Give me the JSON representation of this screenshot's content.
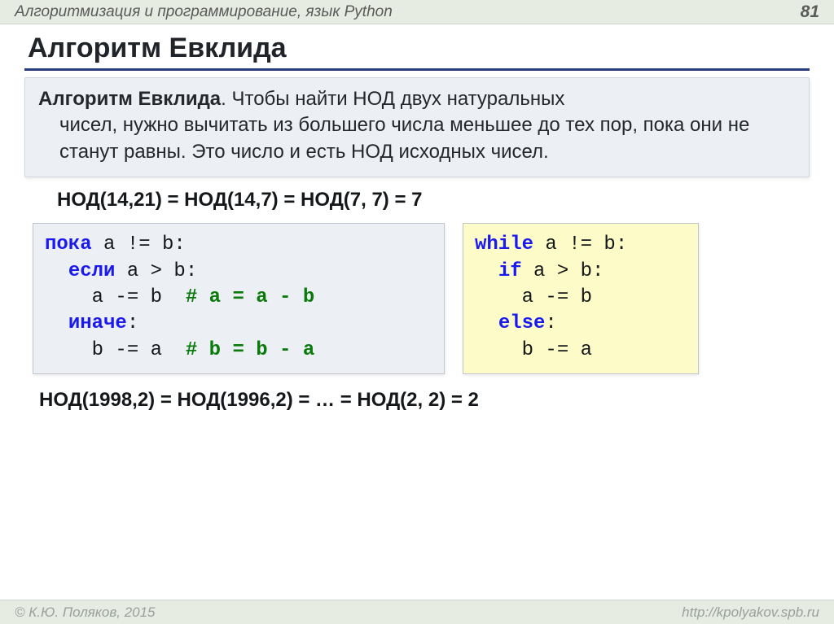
{
  "header": {
    "course_title": "Алгоритмизация и программирование, язык Python",
    "page_number": "81"
  },
  "title": "Алгоритм Евклида",
  "infobox": {
    "lead": "Алгоритм Евклида",
    "body_first": ". Чтобы найти НОД двух натуральных",
    "body_rest": "чисел, нужно вычитать из большего числа меньшее до тех пор, пока они не станут равны. Это число и есть НОД исходных чисел."
  },
  "example_line": "НОД(14,21) = НОД(14,7) = НОД(7, 7) = 7",
  "code_ru": {
    "l1_kw": "пока",
    "l1_rest": " a != b:",
    "l2_kw": "если",
    "l2_rest": " a > b:",
    "l3_txt": "a -= b  ",
    "l3_cmt": "# a = a - b",
    "l4_kw": "иначе",
    "l4_rest": ":",
    "l5_txt": "b -= a  ",
    "l5_cmt": "# b = b - a"
  },
  "code_py": {
    "l1_kw": "while",
    "l1_rest": " a != b:",
    "l2_kw": "if",
    "l2_rest": " a > b:",
    "l3": "a -= b",
    "l4_kw": "else",
    "l4_rest": ":",
    "l5": "b -= a"
  },
  "example2": "НОД(1998,2) = НОД(1996,2) = … = НОД(2, 2) = 2",
  "footer": {
    "copyright": "© К.Ю. Поляков, 2015",
    "url": "http://kpolyakov.spb.ru"
  },
  "colors": {
    "header_bg": "#e7ece3",
    "rule": "#2a3a7a",
    "infobox_bg": "#ecf0f4",
    "code_py_bg": "#fdfcc9",
    "keyword": "#1a1af0",
    "comment": "#0a7a0a",
    "text": "#202428"
  },
  "typography": {
    "title_fontsize": 34,
    "body_fontsize": 24,
    "code_fontsize": 24,
    "header_fontsize": 19,
    "footer_fontsize": 17,
    "code_font": "Courier New"
  }
}
